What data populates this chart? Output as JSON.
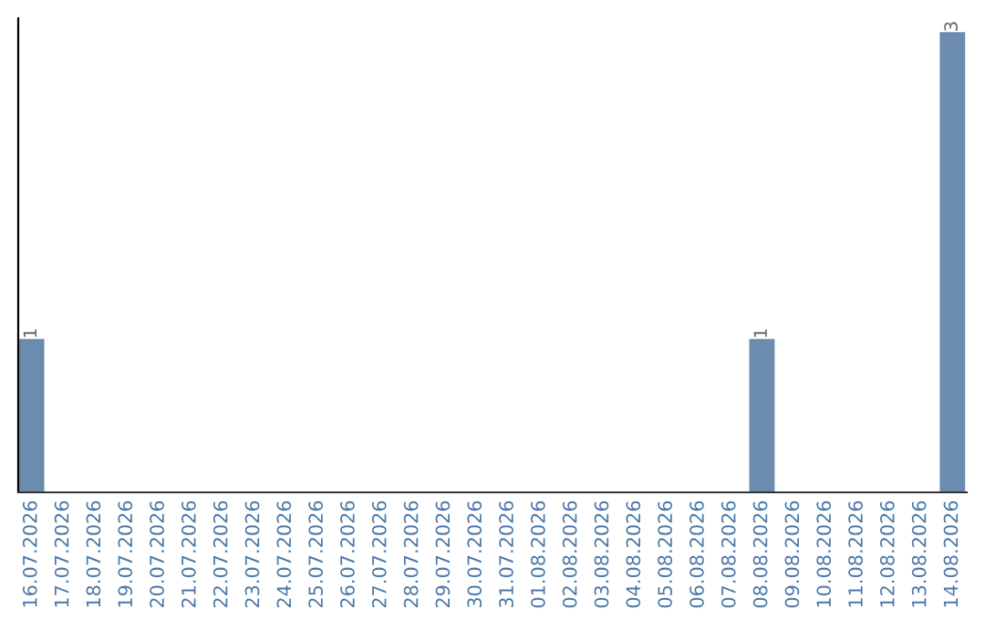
{
  "chart_data": {
    "type": "bar",
    "categories": [
      "16.07.2026",
      "17.07.2026",
      "18.07.2026",
      "19.07.2026",
      "20.07.2026",
      "21.07.2026",
      "22.07.2026",
      "23.07.2026",
      "24.07.2026",
      "25.07.2026",
      "26.07.2026",
      "27.07.2026",
      "28.07.2026",
      "29.07.2026",
      "30.07.2026",
      "31.07.2026",
      "01.08.2026",
      "02.08.2026",
      "03.08.2026",
      "04.08.2026",
      "05.08.2026",
      "06.08.2026",
      "07.08.2026",
      "08.08.2026",
      "09.08.2026",
      "10.08.2026",
      "11.08.2026",
      "12.08.2026",
      "13.08.2026",
      "14.08.2026"
    ],
    "values": [
      1,
      0,
      0,
      0,
      0,
      0,
      0,
      0,
      0,
      0,
      0,
      0,
      0,
      0,
      0,
      0,
      0,
      0,
      0,
      0,
      0,
      0,
      0,
      1,
      0,
      0,
      0,
      0,
      0,
      3
    ],
    "value_labels": [
      "1",
      null,
      null,
      null,
      null,
      null,
      null,
      null,
      null,
      null,
      null,
      null,
      null,
      null,
      null,
      null,
      null,
      null,
      null,
      null,
      null,
      null,
      null,
      "1",
      null,
      null,
      null,
      null,
      null,
      "3"
    ],
    "color": "#6b8cae",
    "tick_labels": "x",
    "grid": false
  }
}
